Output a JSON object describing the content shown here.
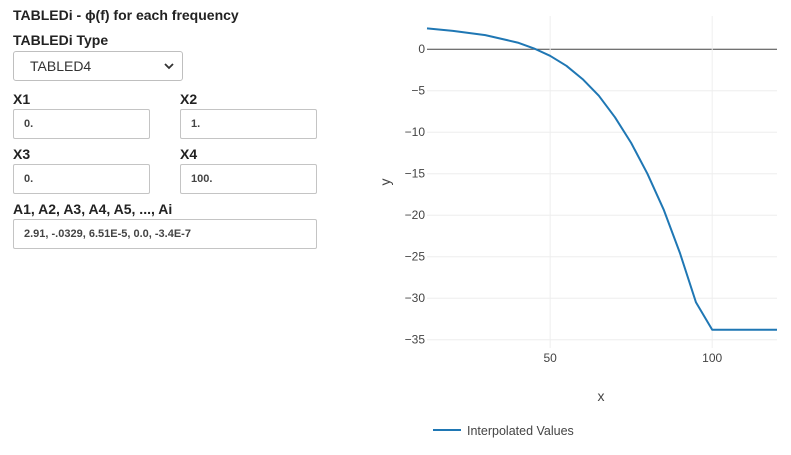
{
  "form": {
    "title": "TABLEDi - ϕ(f) for each frequency",
    "type_label": "TABLEDi Type",
    "type_value": "TABLED4",
    "x1_label": "X1",
    "x1_value": "0.",
    "x2_label": "X2",
    "x2_value": "1.",
    "x3_label": "X3",
    "x3_value": "0.",
    "x4_label": "X4",
    "x4_value": "100.",
    "a_label": "A1, A2, A3, A4, A5, ..., Ai",
    "a_value": "2.91, -.0329, 6.51E-5, 0.0, -3.4E-7"
  },
  "chart_data": {
    "type": "line",
    "xlabel": "x",
    "ylabel": "y",
    "xlim": [
      12,
      120
    ],
    "ylim": [
      -36,
      4
    ],
    "x_ticks": [
      50,
      100
    ],
    "y_ticks": [
      0,
      -5,
      -10,
      -15,
      -20,
      -25,
      -30,
      -35
    ],
    "x_tick_labels": [
      "50",
      "100"
    ],
    "y_tick_labels": [
      "0",
      "−5",
      "−10",
      "−15",
      "−20",
      "−25",
      "−30",
      "−35"
    ],
    "grid": true,
    "legend": "bottom-left",
    "series": [
      {
        "name": "Interpolated Values",
        "color": "#1f77b4",
        "x": [
          12,
          20,
          30,
          40,
          45,
          50,
          55,
          60,
          65,
          70,
          75,
          80,
          85,
          90,
          95,
          100,
          110,
          120
        ],
        "y": [
          2.5,
          2.2,
          1.7,
          0.8,
          0.1,
          -0.8,
          -2.0,
          -3.6,
          -5.6,
          -8.2,
          -11.3,
          -15.0,
          -19.3,
          -24.5,
          -30.5,
          -33.8,
          -33.8,
          -33.8
        ]
      }
    ]
  }
}
